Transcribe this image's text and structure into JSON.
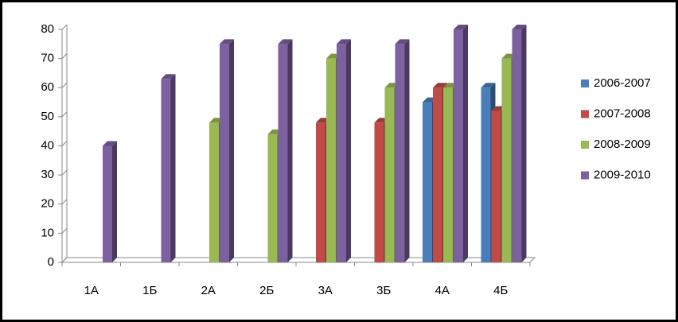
{
  "chart_data": {
    "type": "bar3d",
    "categories": [
      "1А",
      "1Б",
      "2А",
      "2Б",
      "3А",
      "3Б",
      "4А",
      "4Б"
    ],
    "series": [
      {
        "name": "2006-2007",
        "color": "#4a7ebb",
        "values": [
          null,
          null,
          null,
          null,
          null,
          null,
          55,
          60
        ]
      },
      {
        "name": "2007-2008",
        "color": "#be4b48",
        "values": [
          null,
          null,
          null,
          null,
          48,
          48,
          60,
          52
        ]
      },
      {
        "name": "2008-2009",
        "color": "#98b954",
        "values": [
          null,
          null,
          48,
          44,
          70,
          60,
          60,
          70
        ]
      },
      {
        "name": "2009-2010",
        "color": "#7d60a0",
        "values": [
          40,
          63,
          75,
          75,
          75,
          75,
          80,
          80
        ]
      }
    ],
    "ylim": [
      0,
      80
    ],
    "yticks": [
      0,
      10,
      20,
      30,
      40,
      50,
      60,
      70,
      80
    ],
    "legend": "right"
  }
}
